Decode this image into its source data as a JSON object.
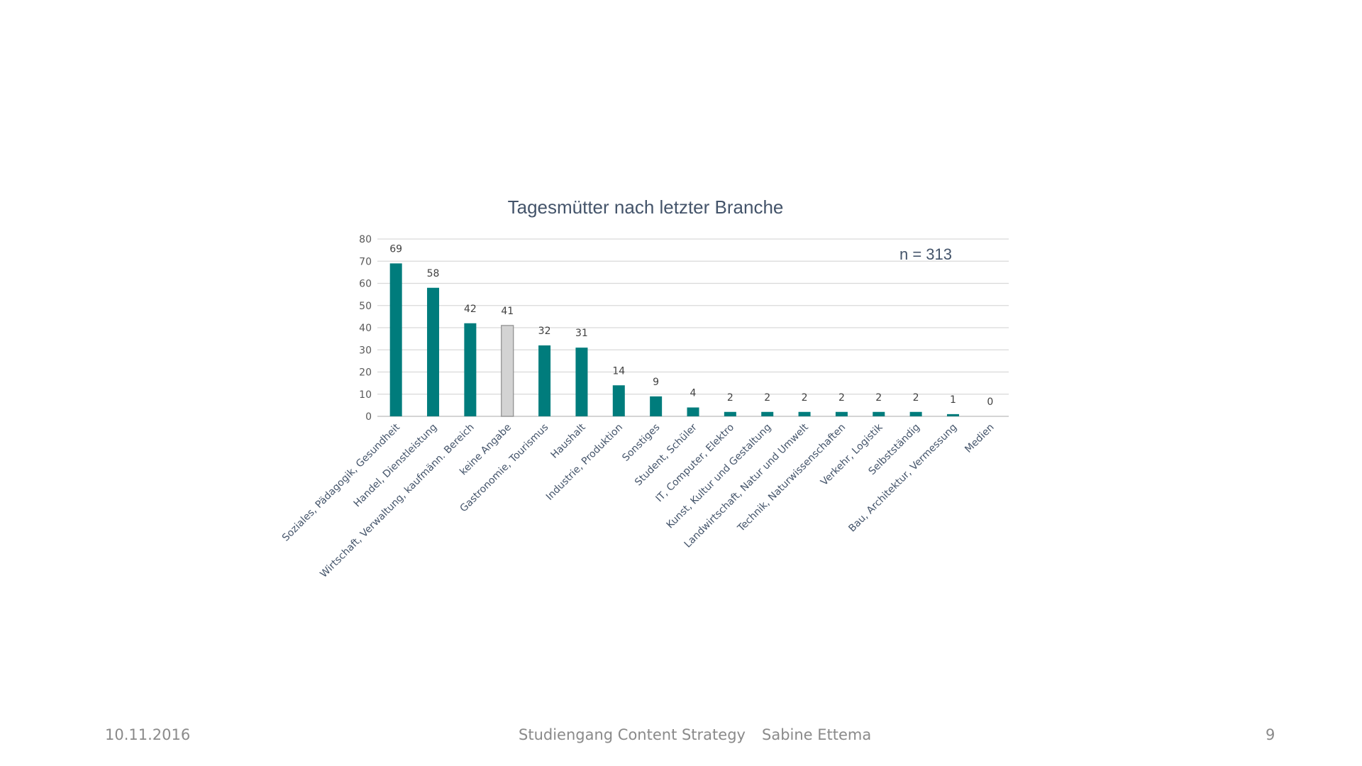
{
  "chart_data": {
    "type": "bar",
    "title": "Tagesmütter nach letzter Branche",
    "annotation": "n = 313",
    "xlabel": "",
    "ylabel": "",
    "ylim": [
      0,
      80
    ],
    "yticks": [
      0,
      10,
      20,
      30,
      40,
      50,
      60,
      70,
      80
    ],
    "grid": true,
    "legend": "none",
    "categories": [
      "Soziales, Pädagogik, Gesundheit",
      "Handel, Dienstleistung",
      "Wirtschaft, Verwaltung, kaufmänn. Bereich",
      "keine Angabe",
      "Gastronomie, Tourismus",
      "Haushalt",
      "Industrie, Produktion",
      "Sonstiges",
      "Student, Schüler",
      "IT, Computer, Elektro",
      "Kunst, Kultur und Gestaltung",
      "Landwirtschaft, Natur und Umwelt",
      "Technik, Naturwissenschaften",
      "Verkehr, Logistik",
      "Selbstständig",
      "Bau, Architektur, Vermessung",
      "Medien"
    ],
    "values": [
      69,
      58,
      42,
      41,
      32,
      31,
      14,
      9,
      4,
      2,
      2,
      2,
      2,
      2,
      2,
      1,
      0
    ],
    "colors": {
      "bar": "#007c7c",
      "highlight_bar": "#d3d3d3",
      "highlight_bar_stroke": "#8c8c8c",
      "highlight_index": 3,
      "grid": "#d9d9d9",
      "title": "#44546a",
      "axis_text": "#595959",
      "category_text": "#44546a"
    }
  },
  "footer": {
    "date": "10.11.2016",
    "course": "Studiengang Content Strategy",
    "author": "Sabine Ettema",
    "page_number": "9"
  }
}
